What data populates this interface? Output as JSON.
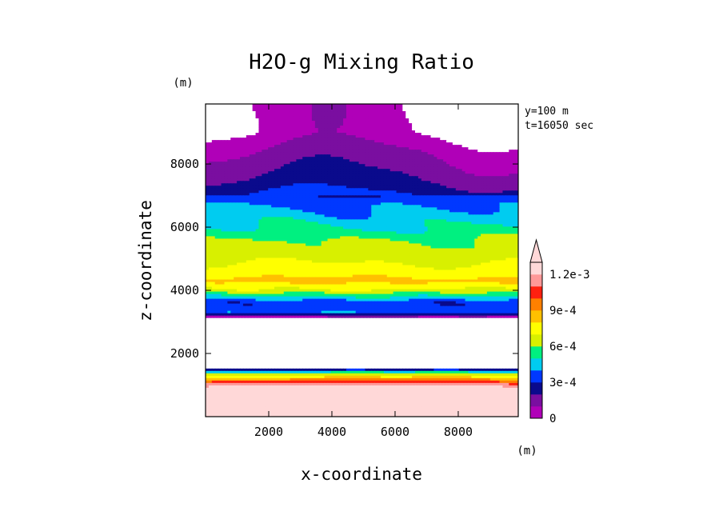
{
  "chart_data": {
    "type": "heatmap",
    "title": "H2O-g Mixing Ratio",
    "xlabel": "x-coordinate",
    "ylabel": "z-coordinate",
    "x_unit": "(m)",
    "y_unit": "(m)",
    "info": [
      "y=100 m",
      "t=16050 sec"
    ],
    "xlim": [
      0,
      9900
    ],
    "ylim": [
      0,
      9900
    ],
    "x_ticks": [
      2000,
      4000,
      6000,
      8000
    ],
    "x_tick_labels": [
      "2000",
      "4000",
      "6000",
      "8000"
    ],
    "y_ticks": [
      2000,
      4000,
      6000,
      8000
    ],
    "y_tick_labels": [
      "2000",
      "4000",
      "6000",
      "8000"
    ],
    "colorbar": {
      "levels": [
        0,
        0.0001,
        0.0002,
        0.0003,
        0.0004,
        0.0005,
        0.0006,
        0.0007,
        0.0008,
        0.0009,
        0.001,
        0.0011,
        0.0012
      ],
      "colors": [
        "#b000b8",
        "#7a0ea0",
        "#0a0a8c",
        "#0038ff",
        "#00ccf0",
        "#00f080",
        "#d8f000",
        "#ffff00",
        "#ffc000",
        "#ff8000",
        "#ff2010",
        "#ff9898",
        "#ffd8d8"
      ],
      "labels": [
        {
          "value": 0,
          "text": "0"
        },
        {
          "value": 0.0003,
          "text": "3e-4"
        },
        {
          "value": 0.0006,
          "text": "6e-4"
        },
        {
          "value": 0.0009,
          "text": "9e-4"
        },
        {
          "value": 0.0012,
          "text": "1.2e-3"
        }
      ],
      "extend": "max"
    },
    "profile": [
      {
        "z": 9900,
        "v": 0
      },
      {
        "z": 9000,
        "v": 0
      },
      {
        "z": 8400,
        "v": 0.0001
      },
      {
        "z": 7500,
        "v": 0.0002
      },
      {
        "z": 7000,
        "v": 0.0003
      },
      {
        "z": 6750,
        "v": 0.00037
      },
      {
        "z": 6300,
        "v": 0.00045
      },
      {
        "z": 5900,
        "v": 0.00052
      },
      {
        "z": 5500,
        "v": 0.00062
      },
      {
        "z": 4700,
        "v": 0.00072
      },
      {
        "z": 4300,
        "v": 0.00083
      },
      {
        "z": 4000,
        "v": 0.00068
      },
      {
        "z": 3750,
        "v": 0.00045
      },
      {
        "z": 3600,
        "v": 0.00032
      },
      {
        "z": 3300,
        "v": 0.00038
      },
      {
        "z": 3150,
        "v": 8e-05
      },
      {
        "z": 3000,
        "v": -1
      },
      {
        "z": 1650,
        "v": -1
      },
      {
        "z": 1550,
        "v": 5e-05
      },
      {
        "z": 1450,
        "v": 0.00035
      },
      {
        "z": 1350,
        "v": 0.0006
      },
      {
        "z": 1200,
        "v": 0.00085
      },
      {
        "z": 1100,
        "v": 0.001
      },
      {
        "z": 1000,
        "v": 0.00115
      },
      {
        "z": 850,
        "v": 0.0013
      },
      {
        "z": 0,
        "v": 0.0013
      }
    ]
  }
}
